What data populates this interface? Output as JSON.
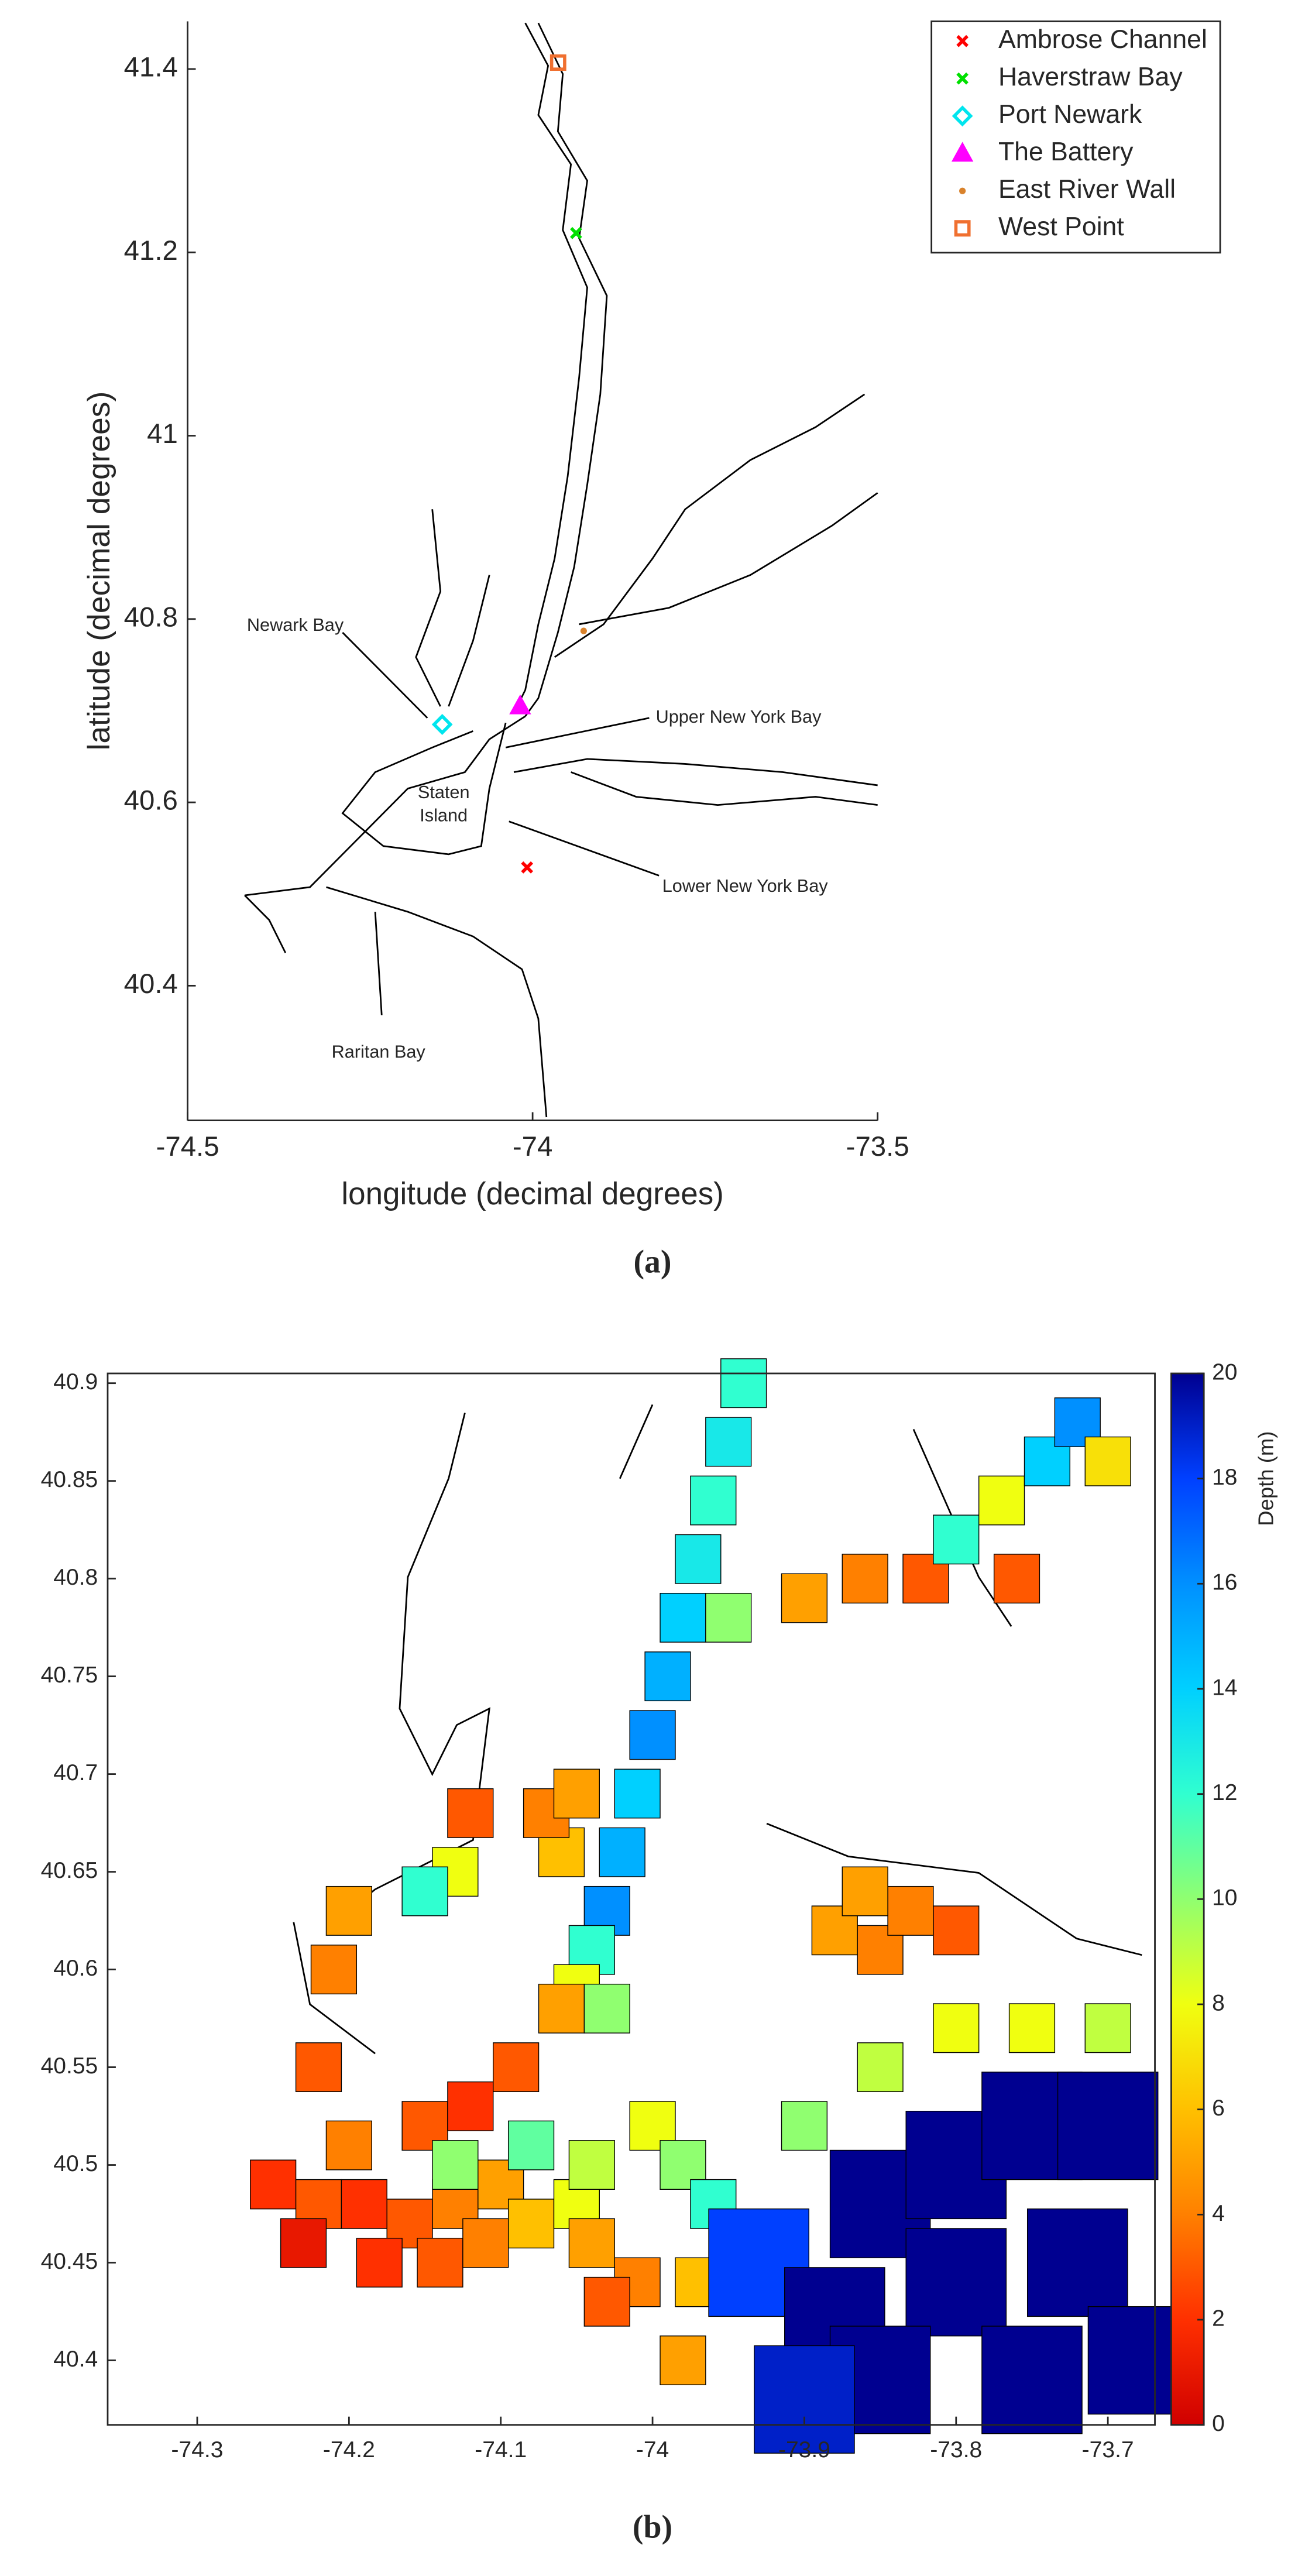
{
  "chart_data": [
    {
      "type": "scatter",
      "caption": "(a)",
      "xlabel": "longitude (decimal degrees)",
      "ylabel": "latitude (decimal degrees)",
      "xlim": [
        -74.5,
        -73.5
      ],
      "ylim": [
        40.253,
        41.452
      ],
      "xticks": [
        -74.5,
        -74,
        -73.5
      ],
      "yticks": [
        40.4,
        40.6,
        40.8,
        41,
        41.2,
        41.4
      ],
      "legend": "upper right",
      "series": [
        {
          "name": "Ambrose Channel",
          "color": "#ff0000",
          "marker": "x",
          "x": [
            -74.008
          ],
          "values": [
            40.529
          ]
        },
        {
          "name": "Haverstraw Bay",
          "color": "#00e000",
          "marker": "x",
          "x": [
            -73.937
          ],
          "values": [
            41.221
          ]
        },
        {
          "name": "Port Newark",
          "color": "#00e5ee",
          "marker": "diamond",
          "x": [
            -74.131
          ],
          "values": [
            40.685
          ]
        },
        {
          "name": "The Battery",
          "color": "#ff00ff",
          "marker": "triangle",
          "x": [
            -74.018
          ],
          "values": [
            40.705
          ]
        },
        {
          "name": "East River Wall",
          "color": "#d9822b",
          "marker": "dot",
          "x": [
            -73.926
          ],
          "values": [
            40.787
          ]
        },
        {
          "name": "West Point",
          "color": "#f07030",
          "marker": "square",
          "x": [
            -73.963
          ],
          "values": [
            41.407
          ]
        }
      ],
      "annotations": [
        "Newark Bay",
        "Upper New York Bay",
        "Staten",
        "Island",
        "Lower New York Bay",
        "Raritan Bay"
      ]
    },
    {
      "type": "mesh",
      "caption": "(b)",
      "colorbar_label": "Depth (m)",
      "xlim": [
        -74.359,
        -73.669
      ],
      "ylim": [
        40.367,
        40.905
      ],
      "xticks": [
        -74.3,
        -74.2,
        -74.1,
        -74,
        -73.9,
        -73.8,
        -73.7
      ],
      "yticks": [
        40.4,
        40.45,
        40.5,
        40.55,
        40.6,
        40.65,
        40.7,
        40.75,
        40.8,
        40.85,
        40.9
      ],
      "clim": [
        0,
        20
      ],
      "cticks": [
        0,
        2,
        4,
        6,
        8,
        10,
        12,
        14,
        16,
        18,
        20
      ],
      "colorscale": [
        "#d00000",
        "#ff3000",
        "#ff8000",
        "#ffc000",
        "#f0ff10",
        "#90ff70",
        "#30ffd0",
        "#00d0ff",
        "#0090ff",
        "#0040ff",
        "#000090"
      ],
      "x": [
        -74.03,
        -74.02,
        -74.01,
        -74.0,
        -73.99,
        -73.98,
        -73.97,
        -73.96,
        -73.95,
        -73.94,
        -74.06,
        -74.07,
        -74.05,
        -74.04,
        -74.05,
        -74.06,
        -74.03,
        -74.25,
        -74.22,
        -74.19,
        -74.16,
        -74.13,
        -74.1,
        -74.23,
        -74.18,
        -74.14,
        -74.11,
        -74.08,
        -74.05,
        -74.2,
        -74.15,
        -74.12,
        -74.09,
        -74.13,
        -74.08,
        -74.04,
        -74.0,
        -73.98,
        -73.96,
        -73.97,
        -73.98,
        -73.93,
        -73.9,
        -73.85,
        -73.8,
        -73.75,
        -73.7,
        -73.85,
        -73.8,
        -73.75,
        -73.7,
        -73.88,
        -73.8,
        -73.72,
        -73.85,
        -73.75,
        -73.68,
        -73.9,
        -73.88,
        -73.85,
        -73.83,
        -73.8,
        -73.86,
        -74.13,
        -74.12,
        -74.15,
        -73.95,
        -73.9,
        -73.86,
        -73.82,
        -73.8,
        -73.77,
        -73.74,
        -73.72,
        -73.76,
        -73.7,
        -74.22,
        -74.21,
        -74.2,
        -74.01,
        -74.03,
        -74.04
      ],
      "y": [
        40.63,
        40.66,
        40.69,
        40.72,
        40.75,
        40.78,
        40.81,
        40.84,
        40.87,
        40.9,
        40.66,
        40.68,
        40.69,
        40.61,
        40.59,
        40.58,
        40.58,
        40.49,
        40.48,
        40.48,
        40.47,
        40.48,
        40.49,
        40.46,
        40.45,
        40.45,
        40.46,
        40.47,
        40.48,
        40.51,
        40.52,
        40.53,
        40.55,
        40.5,
        40.51,
        40.5,
        40.52,
        40.5,
        40.48,
        40.44,
        40.4,
        40.45,
        40.52,
        40.55,
        40.57,
        40.57,
        40.57,
        40.48,
        40.5,
        40.52,
        40.52,
        40.42,
        40.44,
        40.45,
        40.39,
        40.39,
        40.4,
        40.38,
        40.62,
        40.61,
        40.63,
        40.62,
        40.64,
        40.65,
        40.68,
        40.64,
        40.78,
        40.79,
        40.8,
        40.8,
        40.82,
        40.84,
        40.86,
        40.88,
        40.8,
        40.86,
        40.55,
        40.6,
        40.63,
        40.44,
        40.43,
        40.46
      ],
      "values": [
        16,
        15,
        14,
        16,
        15,
        14,
        13,
        12,
        13,
        12,
        6,
        4,
        5,
        12,
        8,
        5,
        10,
        2,
        3,
        2,
        3,
        4,
        5,
        1,
        2,
        3,
        4,
        6,
        8,
        4,
        3,
        2,
        3,
        10,
        11,
        9,
        8,
        10,
        12,
        6,
        5,
        18,
        10,
        9,
        8,
        8,
        9,
        20,
        20,
        20,
        20,
        20,
        20,
        20,
        20,
        20,
        20,
        19,
        5,
        4,
        4,
        3,
        5,
        8,
        3,
        12,
        10,
        5,
        4,
        3,
        12,
        8,
        14,
        16,
        3,
        7,
        3,
        4,
        5,
        4,
        3,
        5
      ]
    }
  ]
}
